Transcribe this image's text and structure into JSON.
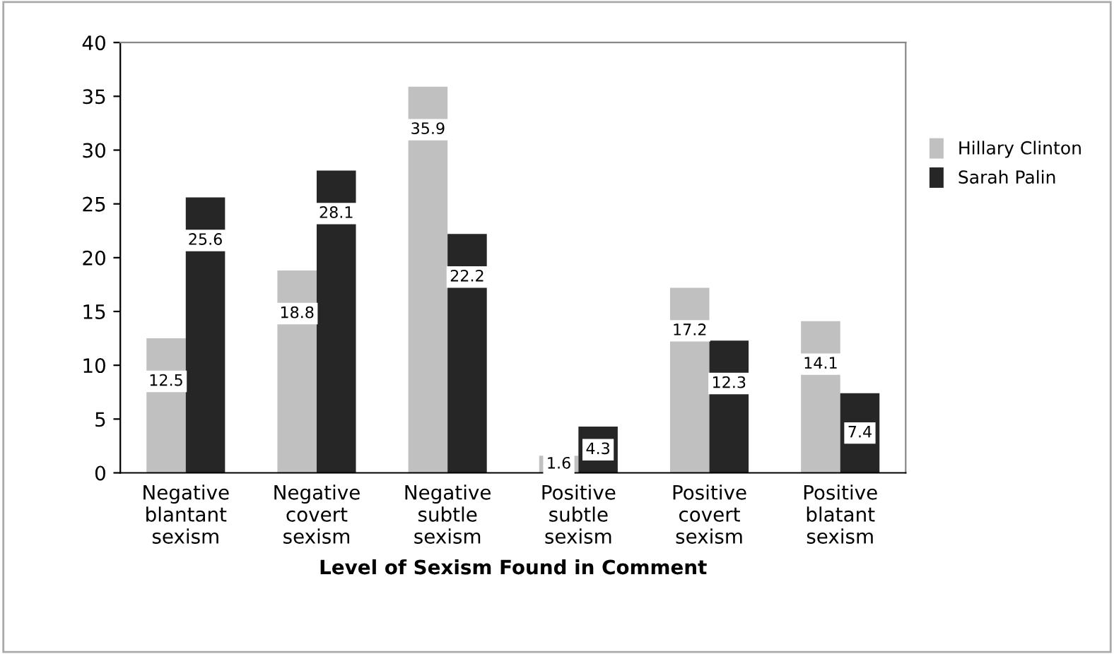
{
  "chart_data": {
    "type": "bar",
    "xlabel": "Level of Sexism Found in Comment",
    "categories": [
      "Negative\nblantant\nsexism",
      "Negative\ncovert\nsexism",
      "Negative\nsubtle\nsexism",
      "Positive\nsubtle\nsexism",
      "Positive\ncovert\nsexism",
      "Positive\nblatant\nsexism"
    ],
    "series": [
      {
        "name": "Hillary Clinton",
        "color": "#c0c0c0",
        "values": [
          12.5,
          18.8,
          35.9,
          1.6,
          17.2,
          14.1
        ]
      },
      {
        "name": "Sarah Palin",
        "color": "#262626",
        "values": [
          25.6,
          28.1,
          22.2,
          4.3,
          12.3,
          7.4
        ]
      }
    ],
    "ylim": [
      0,
      40
    ],
    "yticks": [
      0,
      5,
      10,
      15,
      20,
      25,
      30,
      35,
      40
    ],
    "grid": false,
    "legend": "right",
    "data_labels": true
  }
}
